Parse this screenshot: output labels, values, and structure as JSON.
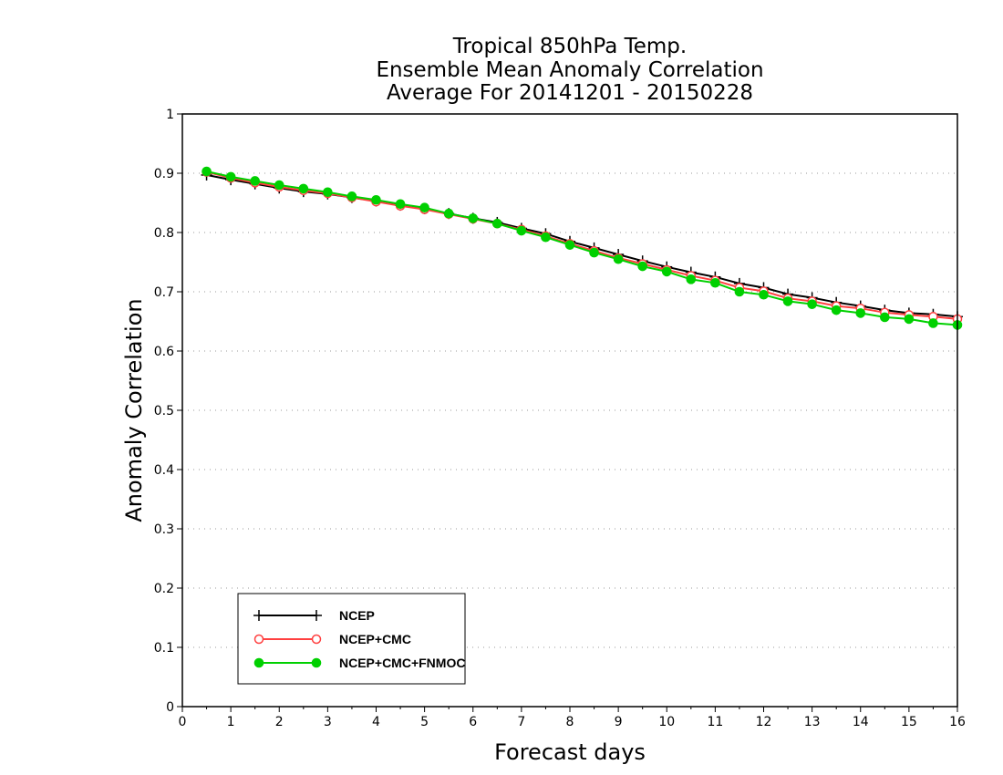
{
  "chart_data": {
    "type": "line",
    "title_lines": [
      "Tropical 850hPa Temp.",
      "Ensemble Mean Anomaly Correlation",
      "Average For 20141201 - 20150228"
    ],
    "xlabel": "Forecast days",
    "ylabel": "Anomaly Correlation",
    "xlim": [
      0,
      16
    ],
    "ylim": [
      0,
      1
    ],
    "x_ticks": [
      "0",
      "1",
      "2",
      "3",
      "4",
      "5",
      "6",
      "7",
      "8",
      "9",
      "10",
      "11",
      "12",
      "13",
      "14",
      "15",
      "16"
    ],
    "y_ticks": [
      "0",
      "0.1",
      "0.2",
      "0.3",
      "0.4",
      "0.5",
      "0.6",
      "0.7",
      "0.8",
      "0.9",
      "1"
    ],
    "grid": "horizontal dotted",
    "legend_position": "bottom-left",
    "x": [
      0.5,
      1,
      1.5,
      2,
      2.5,
      3,
      3.5,
      4,
      4.5,
      5,
      5.5,
      6,
      6.5,
      7,
      7.5,
      8,
      8.5,
      9,
      9.5,
      10,
      10.5,
      11,
      11.5,
      12,
      12.5,
      13,
      13.5,
      14,
      14.5,
      15,
      15.5,
      16
    ],
    "series": [
      {
        "name": "NCEP",
        "color": "#000000",
        "marker": "plus",
        "values": [
          0.897,
          0.889,
          0.882,
          0.875,
          0.869,
          0.865,
          0.859,
          0.853,
          0.846,
          0.84,
          0.832,
          0.824,
          0.817,
          0.807,
          0.798,
          0.785,
          0.774,
          0.763,
          0.752,
          0.742,
          0.733,
          0.725,
          0.714,
          0.707,
          0.696,
          0.69,
          0.682,
          0.676,
          0.669,
          0.664,
          0.662,
          0.658
        ]
      },
      {
        "name": "NCEP+CMC",
        "color": "#ff4040",
        "marker": "open-circle",
        "values": [
          0.902,
          0.892,
          0.884,
          0.877,
          0.871,
          0.866,
          0.859,
          0.852,
          0.845,
          0.839,
          0.831,
          0.823,
          0.815,
          0.805,
          0.794,
          0.781,
          0.769,
          0.757,
          0.747,
          0.737,
          0.727,
          0.719,
          0.707,
          0.701,
          0.689,
          0.684,
          0.676,
          0.672,
          0.665,
          0.661,
          0.658,
          0.654
        ]
      },
      {
        "name": "NCEP+CMC+FNMOC",
        "color": "#00d000",
        "marker": "filled-circle",
        "values": [
          0.903,
          0.894,
          0.887,
          0.88,
          0.874,
          0.868,
          0.861,
          0.855,
          0.848,
          0.842,
          0.832,
          0.824,
          0.815,
          0.803,
          0.792,
          0.779,
          0.766,
          0.755,
          0.743,
          0.734,
          0.721,
          0.715,
          0.7,
          0.695,
          0.684,
          0.679,
          0.669,
          0.664,
          0.657,
          0.654,
          0.647,
          0.644
        ]
      }
    ]
  }
}
